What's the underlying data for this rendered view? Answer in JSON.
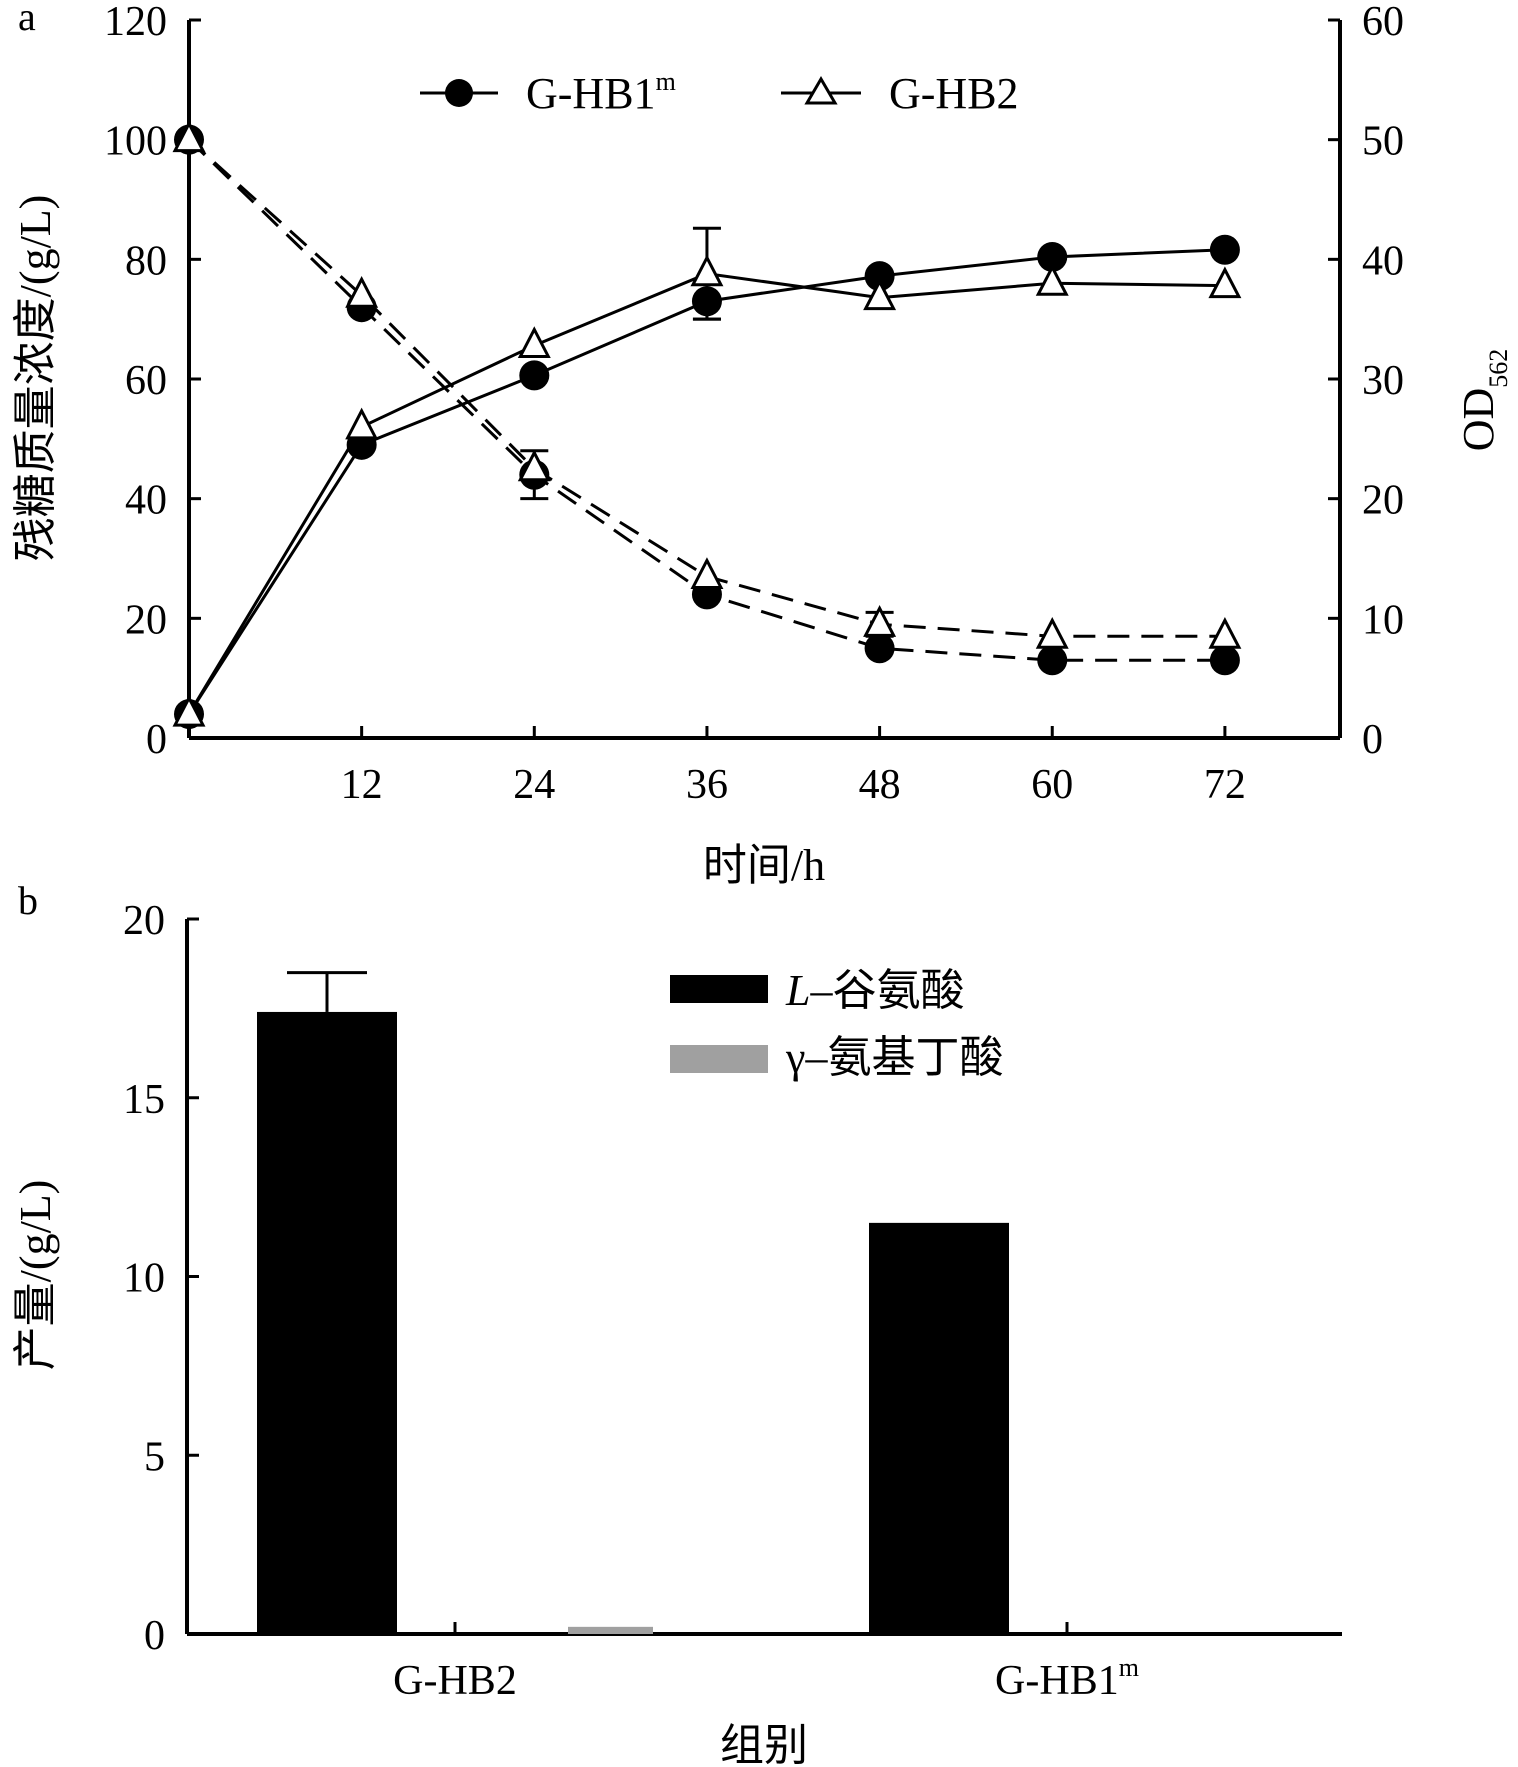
{
  "chart_data": [
    {
      "panel_label": "a",
      "type": "line",
      "xlabel": "时间/h",
      "ylabel_left": "残糖质量浓度/(g/L)",
      "ylabel_right_main": "OD",
      "ylabel_right_sub": "562",
      "x": [
        0,
        12,
        24,
        36,
        48,
        60,
        72
      ],
      "x_tick_labels": [
        "12",
        "24",
        "36",
        "48",
        "60",
        "72"
      ],
      "xlim": [
        0,
        80
      ],
      "ylim_left": [
        0,
        120
      ],
      "ylim_right": [
        0,
        60
      ],
      "y_left_ticks": [
        "0",
        "20",
        "40",
        "60",
        "80",
        "100",
        "120"
      ],
      "y_right_ticks": [
        "0",
        "10",
        "20",
        "30",
        "40",
        "50",
        "60"
      ],
      "legend_position": "top-center",
      "legend": [
        {
          "name": "G-HB1",
          "sup": "m",
          "marker": "filled-circle"
        },
        {
          "name": "G-HB2",
          "sup": "",
          "marker": "open-triangle"
        }
      ],
      "series": [
        {
          "name": "G-HB1m residual sugar",
          "axis": "left",
          "style": "dashed",
          "marker": "filled-circle",
          "values": [
            100,
            72,
            44,
            24,
            15,
            13,
            13
          ],
          "errors": [
            0,
            0,
            4,
            0,
            0,
            0,
            0
          ]
        },
        {
          "name": "G-HB2 residual sugar",
          "axis": "left",
          "style": "dashed",
          "marker": "open-triangle",
          "values": [
            100,
            74,
            45,
            27,
            19,
            17,
            17
          ],
          "errors": [
            0,
            0,
            0,
            0,
            2,
            0,
            0
          ]
        },
        {
          "name": "G-HB1m OD562",
          "axis": "right",
          "style": "solid",
          "marker": "filled-circle",
          "values": [
            2,
            24.5,
            30.3,
            36.5,
            38.6,
            40.2,
            40.8
          ],
          "errors": [
            0,
            0,
            0,
            1.5,
            0,
            0,
            0
          ]
        },
        {
          "name": "G-HB2 OD562",
          "axis": "right",
          "style": "solid",
          "marker": "open-triangle",
          "values": [
            2,
            26,
            32.8,
            38.8,
            36.8,
            38,
            37.8
          ],
          "errors": [
            0,
            0,
            0,
            3.8,
            0,
            0,
            0
          ]
        }
      ]
    },
    {
      "panel_label": "b",
      "type": "bar",
      "xlabel": "组别",
      "ylabel": "产量/(g/L)",
      "categories": [
        {
          "name": "G-HB2",
          "sup": ""
        },
        {
          "name": "G-HB1",
          "sup": "m"
        }
      ],
      "ylim": [
        0,
        20
      ],
      "y_ticks": [
        "0",
        "5",
        "10",
        "15",
        "20"
      ],
      "legend_position": "top-center",
      "series": [
        {
          "name_prefix": "L",
          "name": "–谷氨酸",
          "color": "#000000",
          "values": [
            17.4,
            11.5
          ],
          "errors": [
            1.1,
            0
          ]
        },
        {
          "name_prefix": "γ",
          "name": "–氨基丁酸",
          "color": "#a0a0a0",
          "values": [
            0.2,
            0
          ],
          "errors": [
            0,
            0
          ]
        }
      ]
    }
  ]
}
